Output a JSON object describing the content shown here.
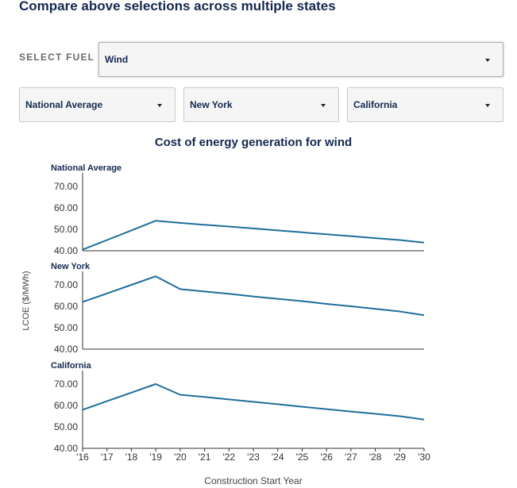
{
  "heading": "Compare above selections across multiple states",
  "fuel_selector": {
    "label": "SELECT FUEL",
    "value": "Wind"
  },
  "state_selectors": [
    {
      "value": "National Average"
    },
    {
      "value": "New York"
    },
    {
      "value": "California"
    }
  ],
  "colors": {
    "line": "#1f6e9c",
    "heading": "#15294f",
    "axis": "#333333"
  },
  "chart_data": {
    "type": "line",
    "title": "Cost of energy generation for wind",
    "xlabel": "Construction Start Year",
    "ylabel": "LCOE ($/MWh)",
    "x": [
      "'16",
      "'17",
      "'18",
      "'19",
      "'20",
      "'21",
      "'22",
      "'23",
      "'24",
      "'25",
      "'26",
      "'27",
      "'28",
      "'29",
      "'30"
    ],
    "ylim": [
      40,
      75
    ],
    "yticks": [
      "40.00",
      "50.00",
      "60.00",
      "70.00"
    ],
    "grid": false,
    "series": [
      {
        "name": "National Average",
        "values": [
          40.5,
          45.0,
          49.5,
          54.0,
          53.0,
          52.1,
          51.3,
          50.4,
          49.5,
          48.6,
          47.7,
          46.8,
          45.9,
          45.0,
          43.8
        ]
      },
      {
        "name": "New York",
        "values": [
          62.0,
          66.0,
          70.0,
          74.0,
          68.0,
          66.9,
          65.8,
          64.6,
          63.5,
          62.4,
          61.1,
          60.0,
          58.8,
          57.6,
          55.8
        ]
      },
      {
        "name": "California",
        "values": [
          58.0,
          62.0,
          66.0,
          70.0,
          65.0,
          64.0,
          62.8,
          61.7,
          60.6,
          59.4,
          58.3,
          57.2,
          56.1,
          55.0,
          53.4
        ]
      }
    ]
  }
}
